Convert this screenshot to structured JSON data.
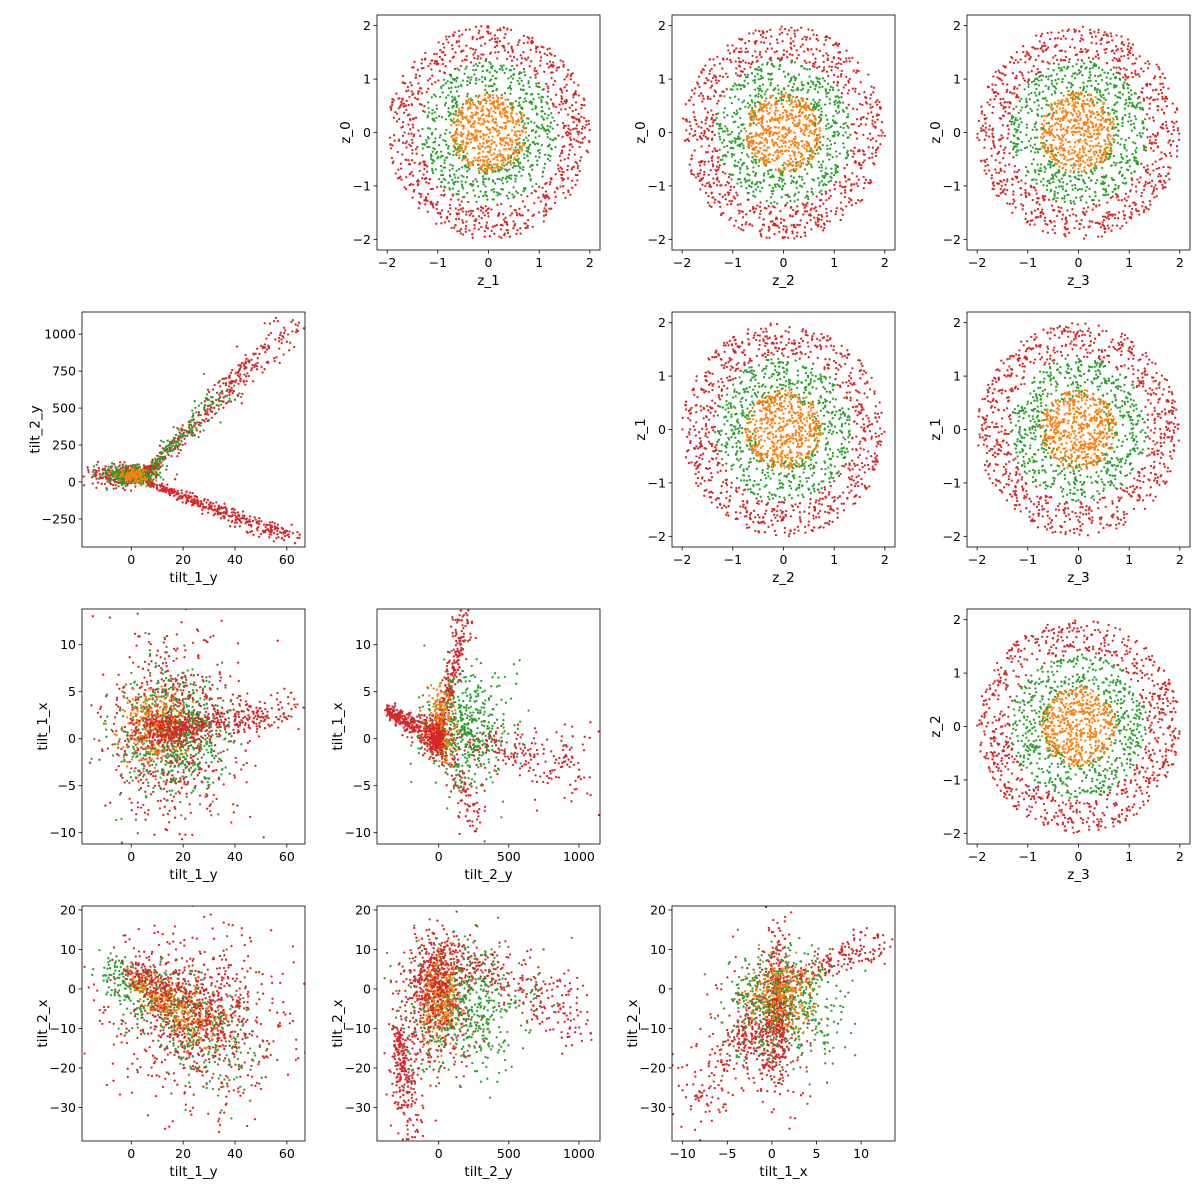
{
  "figure": {
    "colors": {
      "inner": "#ff7f0e",
      "middle": "#2ca02c",
      "outer": "#d62728"
    }
  },
  "chart_data": [
    {
      "type": "scatter",
      "row": 0,
      "col": 1,
      "xlabel": "z_1",
      "ylabel": "z_0",
      "xlim": [
        -2.2,
        2.2
      ],
      "ylim": [
        -2.2,
        2.2
      ],
      "xticks": [
        -2,
        -1,
        0,
        1,
        2
      ],
      "yticks": [
        -2,
        -1,
        0,
        1,
        2
      ],
      "series": [
        {
          "color_key": "outer",
          "shape": "disc",
          "r": [
            1.35,
            2.0
          ],
          "count": 800
        },
        {
          "color_key": "middle",
          "shape": "disc",
          "r": [
            0.6,
            1.35
          ],
          "count": 650
        },
        {
          "color_key": "inner",
          "shape": "disc",
          "r": [
            0.0,
            0.75
          ],
          "count": 500
        }
      ]
    },
    {
      "type": "scatter",
      "row": 0,
      "col": 2,
      "xlabel": "z_2",
      "ylabel": "z_0",
      "xlim": [
        -2.2,
        2.2
      ],
      "ylim": [
        -2.2,
        2.2
      ],
      "xticks": [
        -2,
        -1,
        0,
        1,
        2
      ],
      "yticks": [
        -2,
        -1,
        0,
        1,
        2
      ],
      "series": [
        {
          "color_key": "outer",
          "shape": "disc",
          "r": [
            1.35,
            2.0
          ],
          "count": 800
        },
        {
          "color_key": "middle",
          "shape": "disc",
          "r": [
            0.6,
            1.35
          ],
          "count": 650
        },
        {
          "color_key": "inner",
          "shape": "disc",
          "r": [
            0.0,
            0.75
          ],
          "count": 500
        }
      ]
    },
    {
      "type": "scatter",
      "row": 0,
      "col": 3,
      "xlabel": "z_3",
      "ylabel": "z_0",
      "xlim": [
        -2.2,
        2.2
      ],
      "ylim": [
        -2.2,
        2.2
      ],
      "xticks": [
        -2,
        -1,
        0,
        1,
        2
      ],
      "yticks": [
        -2,
        -1,
        0,
        1,
        2
      ],
      "series": [
        {
          "color_key": "outer",
          "shape": "disc",
          "r": [
            1.35,
            2.0
          ],
          "count": 800
        },
        {
          "color_key": "middle",
          "shape": "disc",
          "r": [
            0.6,
            1.35
          ],
          "count": 650
        },
        {
          "color_key": "inner",
          "shape": "disc",
          "r": [
            0.0,
            0.75
          ],
          "count": 500
        }
      ]
    },
    {
      "type": "scatter",
      "row": 1,
      "col": 0,
      "xlabel": "tilt_1_y",
      "ylabel": "tilt_2_y",
      "xlim": [
        -19,
        67
      ],
      "ylim": [
        -440,
        1150
      ],
      "xticks": [
        0,
        20,
        40,
        60
      ],
      "yticks": [
        -250,
        0,
        250,
        500,
        750,
        1000
      ],
      "series": [
        {
          "color_key": "outer",
          "shape": "line",
          "x": [
            4,
            62
          ],
          "y": [
            20,
            1080
          ],
          "spread": [
            3,
            30
          ],
          "count": 350
        },
        {
          "color_key": "outer",
          "shape": "line",
          "x": [
            4,
            62
          ],
          "y": [
            10,
            -380
          ],
          "spread": [
            3,
            18
          ],
          "count": 380
        },
        {
          "color_key": "middle",
          "shape": "line",
          "x": [
            8,
            36
          ],
          "y": [
            90,
            650
          ],
          "spread": [
            3,
            30
          ],
          "count": 140
        },
        {
          "color_key": "outer",
          "shape": "blob",
          "x": [
            -15,
            12
          ],
          "y": [
            -30,
            130
          ],
          "count": 400
        },
        {
          "color_key": "middle",
          "shape": "blob",
          "x": [
            -12,
            12
          ],
          "y": [
            -30,
            120
          ],
          "count": 250
        },
        {
          "color_key": "inner",
          "shape": "blob",
          "x": [
            -6,
            8
          ],
          "y": [
            -10,
            90
          ],
          "count": 120
        }
      ]
    },
    {
      "type": "scatter",
      "row": 1,
      "col": 2,
      "xlabel": "z_2",
      "ylabel": "z_1",
      "xlim": [
        -2.2,
        2.2
      ],
      "ylim": [
        -2.2,
        2.2
      ],
      "xticks": [
        -2,
        -1,
        0,
        1,
        2
      ],
      "yticks": [
        -2,
        -1,
        0,
        1,
        2
      ],
      "series": [
        {
          "color_key": "outer",
          "shape": "disc",
          "r": [
            1.35,
            2.0
          ],
          "count": 800
        },
        {
          "color_key": "middle",
          "shape": "disc",
          "r": [
            0.6,
            1.35
          ],
          "count": 650
        },
        {
          "color_key": "inner",
          "shape": "disc",
          "r": [
            0.0,
            0.75
          ],
          "count": 500
        }
      ]
    },
    {
      "type": "scatter",
      "row": 1,
      "col": 3,
      "xlabel": "z_3",
      "ylabel": "z_1",
      "xlim": [
        -2.2,
        2.2
      ],
      "ylim": [
        -2.2,
        2.2
      ],
      "xticks": [
        -2,
        -1,
        0,
        1,
        2
      ],
      "yticks": [
        -2,
        -1,
        0,
        1,
        2
      ],
      "series": [
        {
          "color_key": "outer",
          "shape": "disc",
          "r": [
            1.35,
            2.0
          ],
          "count": 800
        },
        {
          "color_key": "middle",
          "shape": "disc",
          "r": [
            0.6,
            1.35
          ],
          "count": 650
        },
        {
          "color_key": "inner",
          "shape": "disc",
          "r": [
            0.0,
            0.75
          ],
          "count": 500
        }
      ]
    },
    {
      "type": "scatter",
      "row": 2,
      "col": 0,
      "xlabel": "tilt_1_y",
      "ylabel": "tilt_1_x",
      "xlim": [
        -19,
        67
      ],
      "ylim": [
        -11.2,
        13.8
      ],
      "xticks": [
        0,
        20,
        40,
        60
      ],
      "yticks": [
        -10,
        -5,
        0,
        5,
        10
      ],
      "series": [
        {
          "color_key": "outer",
          "shape": "blob",
          "x": [
            -12,
            45
          ],
          "y": [
            -10,
            12
          ],
          "count": 700
        },
        {
          "color_key": "outer",
          "shape": "line",
          "x": [
            10,
            63
          ],
          "y": [
            1,
            3
          ],
          "spread": [
            2,
            0.9
          ],
          "count": 300
        },
        {
          "color_key": "middle",
          "shape": "blob",
          "x": [
            -8,
            40
          ],
          "y": [
            -7,
            8
          ],
          "count": 600
        },
        {
          "color_key": "inner",
          "shape": "blob",
          "x": [
            -5,
            22
          ],
          "y": [
            -3,
            6
          ],
          "count": 250
        },
        {
          "color_key": "outer",
          "shape": "blob",
          "x": [
            0,
            30
          ],
          "y": [
            -1,
            3
          ],
          "count": 250
        }
      ]
    },
    {
      "type": "scatter",
      "row": 2,
      "col": 1,
      "xlabel": "tilt_2_y",
      "ylabel": "tilt_1_x",
      "xlim": [
        -440,
        1150
      ],
      "ylim": [
        -11.2,
        13.8
      ],
      "xticks": [
        0,
        500,
        1000
      ],
      "yticks": [
        -10,
        -5,
        0,
        5,
        10
      ],
      "series": [
        {
          "color_key": "outer",
          "shape": "line",
          "x": [
            -370,
            0
          ],
          "y": [
            3,
            0
          ],
          "spread": [
            20,
            0.8
          ],
          "count": 350
        },
        {
          "color_key": "outer",
          "shape": "line",
          "x": [
            0,
            180
          ],
          "y": [
            0,
            12.5
          ],
          "spread": [
            30,
            1.2
          ],
          "count": 250
        },
        {
          "color_key": "outer",
          "shape": "line",
          "x": [
            0,
            1050
          ],
          "y": [
            0,
            -3
          ],
          "spread": [
            50,
            1.5
          ],
          "count": 250
        },
        {
          "color_key": "outer",
          "shape": "line",
          "x": [
            0,
            300
          ],
          "y": [
            0,
            -9
          ],
          "spread": [
            40,
            1.2
          ],
          "count": 120
        },
        {
          "color_key": "middle",
          "shape": "blob",
          "x": [
            -150,
            550
          ],
          "y": [
            -6,
            8
          ],
          "count": 450
        },
        {
          "color_key": "inner",
          "shape": "blob",
          "x": [
            -100,
            120
          ],
          "y": [
            -3,
            6
          ],
          "count": 200
        },
        {
          "color_key": "outer",
          "shape": "blob",
          "x": [
            -90,
            60
          ],
          "y": [
            -2,
            2
          ],
          "count": 200
        }
      ]
    },
    {
      "type": "scatter",
      "row": 2,
      "col": 3,
      "xlabel": "z_3",
      "ylabel": "z_2",
      "xlim": [
        -2.2,
        2.2
      ],
      "ylim": [
        -2.2,
        2.2
      ],
      "xticks": [
        -2,
        -1,
        0,
        1,
        2
      ],
      "yticks": [
        -2,
        -1,
        0,
        1,
        2
      ],
      "series": [
        {
          "color_key": "outer",
          "shape": "disc",
          "r": [
            1.35,
            2.0
          ],
          "count": 800
        },
        {
          "color_key": "middle",
          "shape": "disc",
          "r": [
            0.6,
            1.35
          ],
          "count": 650
        },
        {
          "color_key": "inner",
          "shape": "disc",
          "r": [
            0.0,
            0.75
          ],
          "count": 500
        }
      ]
    },
    {
      "type": "scatter",
      "row": 3,
      "col": 0,
      "xlabel": "tilt_1_y",
      "ylabel": "tilt_2_x",
      "xlim": [
        -19,
        67
      ],
      "ylim": [
        -38.5,
        21
      ],
      "xticks": [
        0,
        20,
        40,
        60
      ],
      "yticks": [
        -30,
        -20,
        -10,
        0,
        10,
        20
      ],
      "series": [
        {
          "color_key": "outer",
          "shape": "blob",
          "x": [
            -15,
            64
          ],
          "y": [
            -36,
            18
          ],
          "count": 700
        },
        {
          "color_key": "middle",
          "shape": "line",
          "x": [
            -10,
            40
          ],
          "y": [
            5,
            -15
          ],
          "spread": [
            6,
            6
          ],
          "count": 500
        },
        {
          "color_key": "inner",
          "shape": "line",
          "x": [
            0,
            30
          ],
          "y": [
            3,
            -10
          ],
          "spread": [
            4,
            3
          ],
          "count": 300
        },
        {
          "color_key": "outer",
          "shape": "line",
          "x": [
            0,
            35
          ],
          "y": [
            5,
            -10
          ],
          "spread": [
            5,
            4
          ],
          "count": 350
        }
      ]
    },
    {
      "type": "scatter",
      "row": 3,
      "col": 1,
      "xlabel": "tilt_2_y",
      "ylabel": "tilt_2_x",
      "xlim": [
        -440,
        1150
      ],
      "ylim": [
        -38.5,
        21
      ],
      "xticks": [
        0,
        500,
        1000
      ],
      "yticks": [
        -30,
        -20,
        -10,
        0,
        10,
        20
      ],
      "series": [
        {
          "color_key": "outer",
          "shape": "line",
          "x": [
            -300,
            -200
          ],
          "y": [
            -10,
            -35
          ],
          "spread": [
            50,
            5
          ],
          "count": 250
        },
        {
          "color_key": "outer",
          "shape": "line",
          "x": [
            0,
            1050
          ],
          "y": [
            10,
            -8
          ],
          "spread": [
            40,
            4
          ],
          "count": 300
        },
        {
          "color_key": "outer",
          "shape": "blob",
          "x": [
            -350,
            300
          ],
          "y": [
            -25,
            18
          ],
          "count": 450
        },
        {
          "color_key": "middle",
          "shape": "blob",
          "x": [
            -300,
            700
          ],
          "y": [
            -22,
            12
          ],
          "count": 500
        },
        {
          "color_key": "inner",
          "shape": "blob",
          "x": [
            -150,
            150
          ],
          "y": [
            -15,
            10
          ],
          "count": 250
        },
        {
          "color_key": "outer",
          "shape": "blob",
          "x": [
            -200,
            200
          ],
          "y": [
            -10,
            15
          ],
          "count": 250
        }
      ]
    },
    {
      "type": "scatter",
      "row": 3,
      "col": 2,
      "xlabel": "tilt_1_x",
      "ylabel": "tilt_2_x",
      "xlim": [
        -11.2,
        13.8
      ],
      "ylim": [
        -38.5,
        21
      ],
      "xticks": [
        -10,
        -5,
        0,
        5,
        10
      ],
      "yticks": [
        -30,
        -20,
        -10,
        0,
        10,
        20
      ],
      "series": [
        {
          "color_key": "outer",
          "shape": "line",
          "x": [
            0,
            12
          ],
          "y": [
            0,
            12
          ],
          "spread": [
            0.8,
            2
          ],
          "count": 200
        },
        {
          "color_key": "outer",
          "shape": "line",
          "x": [
            0,
            -10
          ],
          "y": [
            -5,
            -30
          ],
          "spread": [
            1.2,
            4
          ],
          "count": 180
        },
        {
          "color_key": "outer",
          "shape": "blob",
          "x": [
            -6,
            5
          ],
          "y": [
            -30,
            10
          ],
          "count": 350
        },
        {
          "color_key": "outer",
          "shape": "blob",
          "x": [
            -1,
            2
          ],
          "y": [
            -25,
            17
          ],
          "count": 350
        },
        {
          "color_key": "middle",
          "shape": "blob",
          "x": [
            -6,
            9
          ],
          "y": [
            -20,
            12
          ],
          "count": 500
        },
        {
          "color_key": "inner",
          "shape": "blob",
          "x": [
            -3,
            5
          ],
          "y": [
            -12,
            8
          ],
          "count": 250
        }
      ]
    }
  ]
}
